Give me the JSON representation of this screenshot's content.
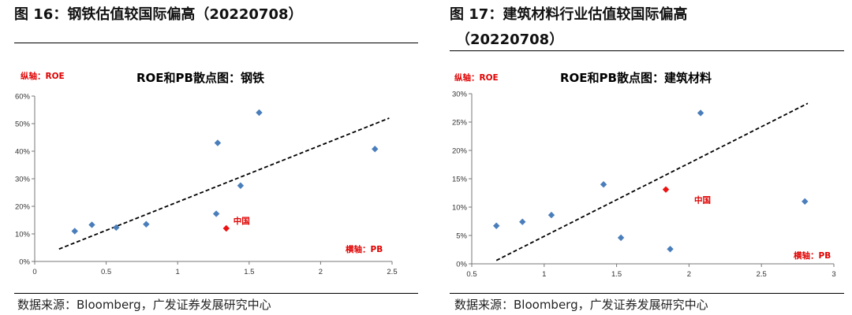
{
  "page": {
    "figures": [
      {
        "title_line1": "图 16：钢铁估值较国际偏高（20220708）",
        "title_line2": "",
        "source": "数据来源：Bloomberg，广发证券发展研究中心"
      },
      {
        "title_line1": "图 17：建筑材料行业估值较国际偏高",
        "title_line2": "（20220708）",
        "source": "数据来源：Bloomberg，广发证券发展研究中心"
      }
    ]
  },
  "chart_data": [
    {
      "type": "scatter",
      "title": "ROE和PB散点图：钢铁",
      "ylabel": "纵轴：ROE",
      "xlabel": "横轴：PB",
      "xlim": [
        0,
        2.5
      ],
      "ylim": [
        0,
        0.6
      ],
      "xticks": [
        0,
        0.5,
        1,
        1.5,
        2,
        2.5
      ],
      "xtick_labels": [
        "0",
        "0.5",
        "1",
        "1.5",
        "2",
        "2.5"
      ],
      "yticks": [
        0,
        0.1,
        0.2,
        0.3,
        0.4,
        0.5,
        0.6
      ],
      "ytick_labels": [
        "0%",
        "10%",
        "20%",
        "30%",
        "40%",
        "50%",
        "60%"
      ],
      "grid": false,
      "series": [
        {
          "color": "#4a7ebb",
          "points": [
            [
              0.28,
              0.11
            ],
            [
              0.4,
              0.133
            ],
            [
              0.57,
              0.123
            ],
            [
              0.78,
              0.135
            ],
            [
              1.28,
              0.43
            ],
            [
              1.27,
              0.173
            ],
            [
              1.44,
              0.275
            ],
            [
              1.57,
              0.54
            ],
            [
              2.38,
              0.408
            ]
          ]
        },
        {
          "name": "中国",
          "color": "#ee1111",
          "points": [
            [
              1.34,
              0.12
            ]
          ]
        }
      ],
      "trendline": {
        "style": "dashed",
        "from": [
          0.17,
          0.045
        ],
        "to": [
          2.48,
          0.52
        ]
      }
    },
    {
      "type": "scatter",
      "title": "ROE和PB散点图：建筑材料",
      "ylabel": "纵轴：ROE",
      "xlabel": "横轴：PB",
      "xlim": [
        0.5,
        3
      ],
      "ylim": [
        0,
        0.3
      ],
      "xticks": [
        0.5,
        1,
        1.5,
        2,
        2.5,
        3
      ],
      "xtick_labels": [
        "0.5",
        "1",
        "1.5",
        "2",
        "2.5",
        "3"
      ],
      "yticks": [
        0,
        0.05,
        0.1,
        0.15,
        0.2,
        0.25,
        0.3
      ],
      "ytick_labels": [
        "0%",
        "5%",
        "10%",
        "15%",
        "20%",
        "25%",
        "30%"
      ],
      "grid": false,
      "series": [
        {
          "color": "#4a7ebb",
          "points": [
            [
              0.67,
              0.067
            ],
            [
              0.85,
              0.074
            ],
            [
              1.05,
              0.086
            ],
            [
              1.41,
              0.14
            ],
            [
              1.53,
              0.046
            ],
            [
              1.87,
              0.026
            ],
            [
              2.08,
              0.266
            ],
            [
              2.8,
              0.11
            ]
          ]
        },
        {
          "name": "中国",
          "color": "#ee1111",
          "points": [
            [
              1.84,
              0.131
            ]
          ]
        }
      ],
      "trendline": {
        "style": "dashed",
        "from": [
          0.67,
          0.006
        ],
        "to": [
          2.82,
          0.283
        ]
      }
    }
  ]
}
